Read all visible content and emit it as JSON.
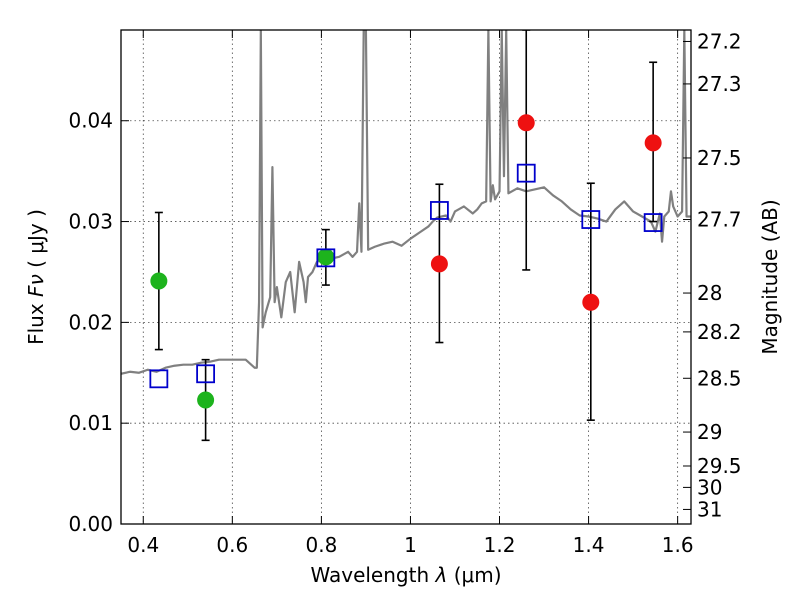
{
  "chart_data": {
    "type": "scatter",
    "xlabel_prefix": "Wavelength",
    "xlabel_symbol": "λ",
    "xlabel_unit": "(μm)",
    "ylabel_prefix": "Flux",
    "ylabel_symbol": "Fν",
    "ylabel_unit": "( μJy )",
    "y2label": "Magnitude (AB)",
    "xlim": [
      0.35,
      1.63
    ],
    "ylim": [
      0.0,
      0.049
    ],
    "grid": true,
    "x_ticks": [
      {
        "value": 0.4,
        "label": "0.4"
      },
      {
        "value": 0.6,
        "label": "0.6"
      },
      {
        "value": 0.8,
        "label": "0.8"
      },
      {
        "value": 1.0,
        "label": "1"
      },
      {
        "value": 1.2,
        "label": "1.2"
      },
      {
        "value": 1.4,
        "label": "1.4"
      },
      {
        "value": 1.6,
        "label": "1.6"
      }
    ],
    "y_ticks": [
      {
        "value": 0.0,
        "label": "0.00"
      },
      {
        "value": 0.01,
        "label": "0.01"
      },
      {
        "value": 0.02,
        "label": "0.02"
      },
      {
        "value": 0.03,
        "label": "0.03"
      },
      {
        "value": 0.04,
        "label": "0.04"
      }
    ],
    "mag_ticks": [
      {
        "value": 27.2,
        "label": "27.2"
      },
      {
        "value": 27.3,
        "label": "27.3"
      },
      {
        "value": 27.5,
        "label": "27.5"
      },
      {
        "value": 27.7,
        "label": "27.7"
      },
      {
        "value": 28,
        "label": "28"
      },
      {
        "value": 28.2,
        "label": "28.2"
      },
      {
        "value": 28.5,
        "label": "28.5"
      },
      {
        "value": 29,
        "label": "29"
      },
      {
        "value": 29.5,
        "label": "29.5"
      },
      {
        "value": 30,
        "label": "30"
      },
      {
        "value": 31,
        "label": "31"
      }
    ],
    "colors": {
      "spectrum": "#808080",
      "green": "#1db31d",
      "red": "#ee1111",
      "model_box": "#0000cc",
      "errorbar": "#000000"
    },
    "spectrum": [
      [
        0.35,
        0.0149
      ],
      [
        0.37,
        0.0151
      ],
      [
        0.39,
        0.015
      ],
      [
        0.41,
        0.0153
      ],
      [
        0.43,
        0.0151
      ],
      [
        0.45,
        0.0155
      ],
      [
        0.47,
        0.0157
      ],
      [
        0.49,
        0.0158
      ],
      [
        0.51,
        0.0158
      ],
      [
        0.53,
        0.016
      ],
      [
        0.55,
        0.0161
      ],
      [
        0.57,
        0.0163
      ],
      [
        0.59,
        0.0163
      ],
      [
        0.61,
        0.0163
      ],
      [
        0.63,
        0.0163
      ],
      [
        0.65,
        0.0155
      ],
      [
        0.655,
        0.0155
      ],
      [
        0.66,
        0.022
      ],
      [
        0.664,
        0.049
      ],
      [
        0.668,
        0.0195
      ],
      [
        0.675,
        0.021
      ],
      [
        0.685,
        0.0225
      ],
      [
        0.69,
        0.0354
      ],
      [
        0.695,
        0.022
      ],
      [
        0.7,
        0.0235
      ],
      [
        0.71,
        0.0205
      ],
      [
        0.72,
        0.024
      ],
      [
        0.73,
        0.025
      ],
      [
        0.74,
        0.021
      ],
      [
        0.75,
        0.026
      ],
      [
        0.76,
        0.024
      ],
      [
        0.765,
        0.022
      ],
      [
        0.77,
        0.0245
      ],
      [
        0.78,
        0.025
      ],
      [
        0.79,
        0.026
      ],
      [
        0.8,
        0.0262
      ],
      [
        0.82,
        0.0263
      ],
      [
        0.84,
        0.0265
      ],
      [
        0.86,
        0.027
      ],
      [
        0.87,
        0.0265
      ],
      [
        0.88,
        0.027
      ],
      [
        0.885,
        0.0318
      ],
      [
        0.89,
        0.027
      ],
      [
        0.895,
        0.049
      ],
      [
        0.9,
        0.049
      ],
      [
        0.905,
        0.0272
      ],
      [
        0.92,
        0.0275
      ],
      [
        0.94,
        0.0278
      ],
      [
        0.96,
        0.028
      ],
      [
        0.98,
        0.0276
      ],
      [
        1.0,
        0.0283
      ],
      [
        1.02,
        0.0289
      ],
      [
        1.04,
        0.0295
      ],
      [
        1.05,
        0.03
      ],
      [
        1.06,
        0.0304
      ],
      [
        1.07,
        0.0305
      ],
      [
        1.08,
        0.0306
      ],
      [
        1.09,
        0.03
      ],
      [
        1.1,
        0.031
      ],
      [
        1.12,
        0.0315
      ],
      [
        1.14,
        0.0308
      ],
      [
        1.15,
        0.0312
      ],
      [
        1.16,
        0.0318
      ],
      [
        1.17,
        0.032
      ],
      [
        1.175,
        0.049
      ],
      [
        1.18,
        0.032
      ],
      [
        1.185,
        0.0336
      ],
      [
        1.19,
        0.0322
      ],
      [
        1.2,
        0.033
      ],
      [
        1.205,
        0.049
      ],
      [
        1.21,
        0.0345
      ],
      [
        1.215,
        0.049
      ],
      [
        1.22,
        0.0328
      ],
      [
        1.24,
        0.0333
      ],
      [
        1.26,
        0.033
      ],
      [
        1.28,
        0.0332
      ],
      [
        1.3,
        0.0334
      ],
      [
        1.32,
        0.0326
      ],
      [
        1.34,
        0.032
      ],
      [
        1.36,
        0.0312
      ],
      [
        1.38,
        0.0306
      ],
      [
        1.4,
        0.0305
      ],
      [
        1.42,
        0.0303
      ],
      [
        1.44,
        0.03
      ],
      [
        1.46,
        0.0312
      ],
      [
        1.48,
        0.032
      ],
      [
        1.5,
        0.031
      ],
      [
        1.52,
        0.0305
      ],
      [
        1.54,
        0.03
      ],
      [
        1.55,
        0.029
      ],
      [
        1.56,
        0.0308
      ],
      [
        1.565,
        0.028
      ],
      [
        1.57,
        0.0305
      ],
      [
        1.58,
        0.031
      ],
      [
        1.585,
        0.033
      ],
      [
        1.59,
        0.0315
      ],
      [
        1.6,
        0.0305
      ],
      [
        1.61,
        0.031
      ],
      [
        1.615,
        0.049
      ],
      [
        1.62,
        0.0305
      ],
      [
        1.63,
        0.0305
      ]
    ],
    "green_points": [
      {
        "x": 0.435,
        "y": 0.0241
      },
      {
        "x": 0.54,
        "y": 0.0123
      },
      {
        "x": 0.81,
        "y": 0.0265
      }
    ],
    "red_points": [
      {
        "x": 1.065,
        "y": 0.0258
      },
      {
        "x": 1.26,
        "y": 0.0398
      },
      {
        "x": 1.405,
        "y": 0.022
      },
      {
        "x": 1.545,
        "y": 0.0378
      }
    ],
    "error_bars": [
      {
        "x": 0.435,
        "low": 0.0173,
        "high": 0.0309
      },
      {
        "x": 0.54,
        "low": 0.0083,
        "high": 0.0163
      },
      {
        "x": 0.81,
        "low": 0.0237,
        "high": 0.0292
      },
      {
        "x": 1.065,
        "low": 0.018,
        "high": 0.0337
      },
      {
        "x": 1.26,
        "low": 0.0252,
        "high": 0.049
      },
      {
        "x": 1.405,
        "low": 0.0103,
        "high": 0.0338
      },
      {
        "x": 1.545,
        "low": 0.03,
        "high": 0.0458
      }
    ],
    "model_boxes": [
      {
        "x": 0.435,
        "y": 0.0144
      },
      {
        "x": 0.54,
        "y": 0.0149
      },
      {
        "x": 0.81,
        "y": 0.0264
      },
      {
        "x": 1.065,
        "y": 0.0311
      },
      {
        "x": 1.26,
        "y": 0.0348
      },
      {
        "x": 1.405,
        "y": 0.0302
      },
      {
        "x": 1.545,
        "y": 0.0299
      }
    ]
  }
}
